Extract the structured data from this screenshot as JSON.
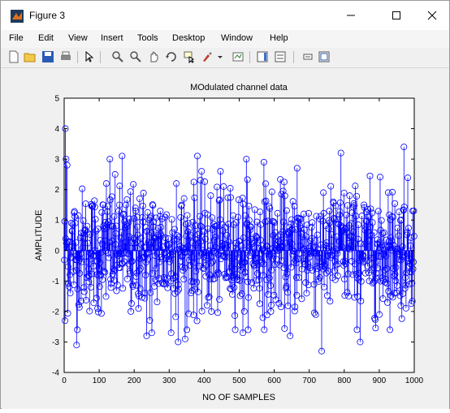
{
  "window": {
    "title": "Figure 3"
  },
  "menu": [
    "File",
    "Edit",
    "View",
    "Insert",
    "Tools",
    "Desktop",
    "Window",
    "Help"
  ],
  "toolbar_icons": [
    "new-figure-icon",
    "open-file-icon",
    "save-icon",
    "print-icon",
    "pointer-icon",
    "zoom-in-icon",
    "zoom-out-icon",
    "pan-icon",
    "rotate-3d-icon",
    "data-cursor-icon",
    "brush-icon",
    "link-plot-icon",
    "colorbar-icon",
    "legend-icon",
    "hide-plot-tools-icon",
    "show-plot-tools-icon"
  ],
  "colors": {
    "series": "#0000ff",
    "axes_bg": "#ffffff",
    "figure_bg": "#f0f0f0"
  },
  "chart_data": {
    "type": "stem",
    "title": "MOdulated channel data",
    "xlabel": "NO OF SAMPLES",
    "ylabel": "AMPLITUDE",
    "xlim": [
      0,
      1000
    ],
    "ylim": [
      -4,
      5
    ],
    "xticks": [
      "0",
      "100",
      "200",
      "300",
      "400",
      "500",
      "600",
      "700",
      "800",
      "900",
      "1000"
    ],
    "yticks": [
      "-4",
      "-3",
      "-2",
      "-1",
      "0",
      "1",
      "2",
      "3",
      "4",
      "5"
    ],
    "marker": "open circle",
    "samples": 1000,
    "highlight_points": [
      {
        "x": 2,
        "y": -2.3
      },
      {
        "x": 3,
        "y": 4.0
      },
      {
        "x": 5,
        "y": 3.0
      },
      {
        "x": 8,
        "y": 2.8
      },
      {
        "x": 35,
        "y": -3.1
      },
      {
        "x": 95,
        "y": -1.9
      },
      {
        "x": 120,
        "y": 2.2
      },
      {
        "x": 130,
        "y": 3.0
      },
      {
        "x": 165,
        "y": 3.1
      },
      {
        "x": 190,
        "y": -2.0
      },
      {
        "x": 215,
        "y": 1.7
      },
      {
        "x": 235,
        "y": -2.8
      },
      {
        "x": 250,
        "y": -2.7
      },
      {
        "x": 305,
        "y": -2.7
      },
      {
        "x": 320,
        "y": 2.2
      },
      {
        "x": 325,
        "y": -3.0
      },
      {
        "x": 345,
        "y": -2.9
      },
      {
        "x": 380,
        "y": 3.1
      },
      {
        "x": 420,
        "y": -2.0
      },
      {
        "x": 455,
        "y": 2.1
      },
      {
        "x": 510,
        "y": -2.7
      },
      {
        "x": 520,
        "y": 3.0
      },
      {
        "x": 570,
        "y": 2.9
      },
      {
        "x": 590,
        "y": -2.0
      },
      {
        "x": 645,
        "y": -2.8
      },
      {
        "x": 665,
        "y": 2.7
      },
      {
        "x": 735,
        "y": -3.3
      },
      {
        "x": 740,
        "y": 1.9
      },
      {
        "x": 790,
        "y": 3.2
      },
      {
        "x": 815,
        "y": 1.8
      },
      {
        "x": 845,
        "y": -3.0
      },
      {
        "x": 900,
        "y": -2.1
      },
      {
        "x": 925,
        "y": 1.9
      },
      {
        "x": 970,
        "y": 3.4
      },
      {
        "x": 995,
        "y": 1.3
      }
    ]
  }
}
